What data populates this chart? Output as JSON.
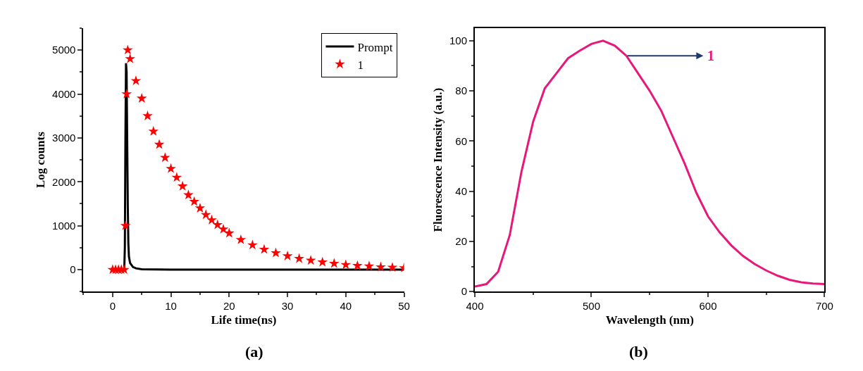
{
  "chart_data": [
    {
      "type": "line",
      "xlabel": "Life time(ns)",
      "ylabel": "Log counts",
      "annotations": [
        "(a)"
      ],
      "xlim": [
        -5,
        50
      ],
      "ylim": [
        -500,
        5500
      ],
      "xticks": [
        0,
        10,
        20,
        30,
        40,
        50
      ],
      "yticks": [
        0,
        1000,
        2000,
        3000,
        4000,
        5000
      ],
      "legend": "top right",
      "series": [
        {
          "name": "Prompt",
          "type": "line",
          "color": "#000000",
          "marker": "none",
          "x": [
            0,
            1,
            2,
            2.1,
            2.2,
            2.3,
            2.4,
            2.5,
            2.6,
            2.7,
            2.8,
            3,
            3.5,
            4,
            5,
            10,
            20,
            30,
            40,
            50
          ],
          "values": [
            0,
            0,
            0,
            500,
            3000,
            4700,
            4500,
            3000,
            1500,
            600,
            300,
            150,
            60,
            30,
            10,
            0,
            0,
            0,
            0,
            0
          ]
        },
        {
          "name": "1",
          "type": "scatter",
          "color": "#ff0000",
          "marker": "star",
          "x": [
            0,
            0.5,
            1,
            1.5,
            2,
            2.2,
            2.4,
            2.6,
            3,
            4,
            5,
            6,
            7,
            8,
            9,
            10,
            11,
            12,
            13,
            14,
            15,
            16,
            17,
            18,
            19,
            20,
            22,
            24,
            26,
            28,
            30,
            32,
            34,
            36,
            38,
            40,
            42,
            44,
            46,
            48,
            50
          ],
          "values": [
            0,
            0,
            0,
            0,
            0,
            1000,
            4000,
            5000,
            4800,
            4300,
            3900,
            3500,
            3150,
            2850,
            2550,
            2300,
            2100,
            1900,
            1700,
            1550,
            1400,
            1250,
            1130,
            1020,
            920,
            830,
            680,
            560,
            460,
            380,
            310,
            250,
            210,
            170,
            140,
            110,
            90,
            80,
            60,
            50,
            40
          ]
        }
      ]
    },
    {
      "type": "line",
      "xlabel": "Wavelength (nm)",
      "ylabel": "Fluorescence Intensity (a.u.)",
      "annotations": [
        "(b)"
      ],
      "xlim": [
        400,
        700
      ],
      "ylim": [
        0,
        105
      ],
      "xticks": [
        400,
        500,
        600,
        700
      ],
      "yticks": [
        0,
        20,
        40,
        60,
        80,
        100
      ],
      "legend": false,
      "series": [
        {
          "name": "1",
          "color": "#e8177a",
          "x": [
            400,
            410,
            420,
            430,
            440,
            450,
            460,
            470,
            480,
            490,
            500,
            510,
            520,
            530,
            540,
            550,
            560,
            570,
            580,
            590,
            600,
            610,
            620,
            630,
            640,
            650,
            660,
            670,
            680,
            690,
            700
          ],
          "values": [
            2,
            3,
            7.9,
            22.6,
            47.8,
            67.7,
            81,
            87,
            93,
            96,
            98.7,
            100,
            98,
            94,
            87,
            80,
            72,
            61.5,
            51,
            39.4,
            30,
            23.6,
            18.4,
            14.2,
            11,
            8.4,
            6.3,
            4.7,
            3.7,
            3.2,
            3
          ]
        }
      ]
    }
  ]
}
